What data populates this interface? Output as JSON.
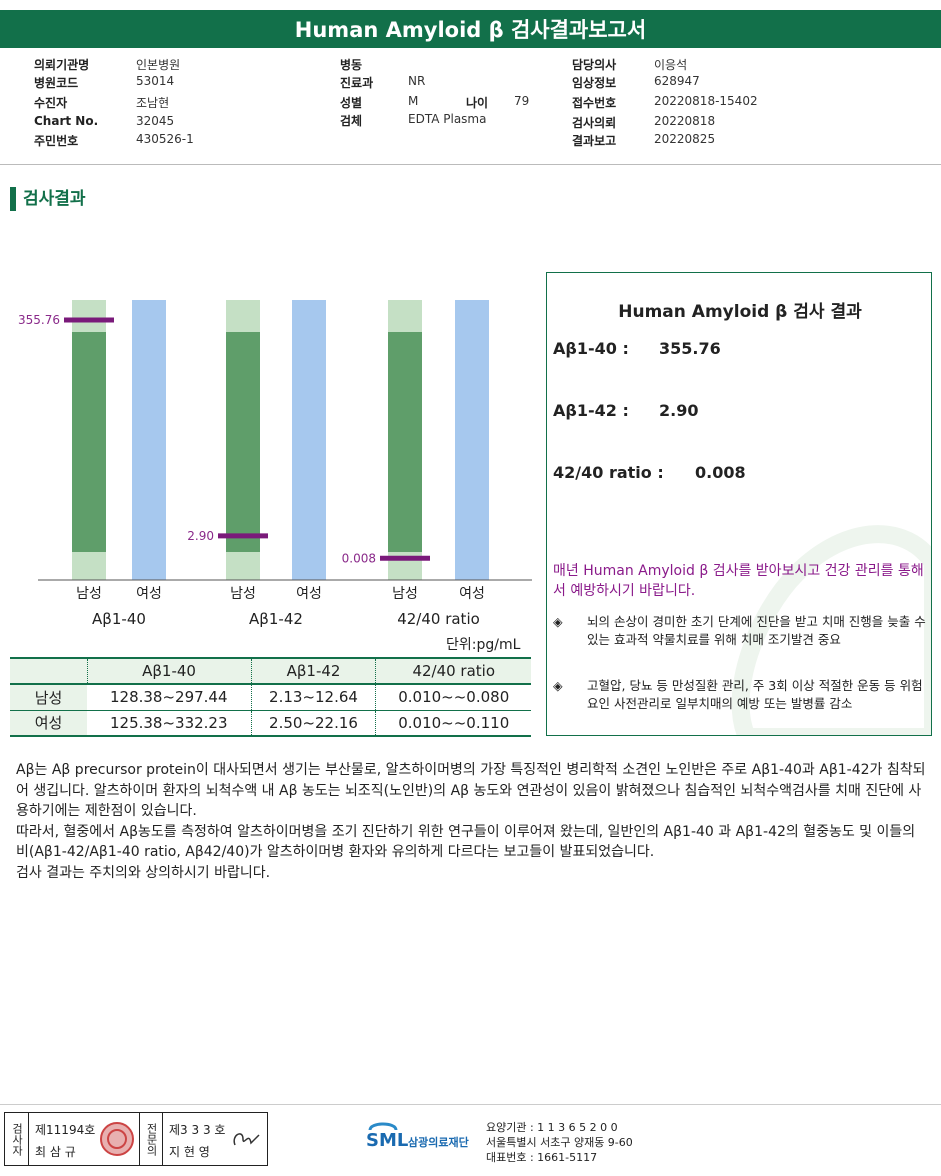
{
  "title": "Human Amyloid β 검사결과보고서",
  "info": {
    "col1": [
      {
        "label": "의뢰기관명",
        "value": "인본병원"
      },
      {
        "label": "병원코드",
        "value": "53014"
      },
      {
        "label": "수진자",
        "value": "조남현"
      },
      {
        "label": "Chart No.",
        "value": "32045"
      },
      {
        "label": "주민번호",
        "value": "430526-1"
      }
    ],
    "col2": [
      {
        "label": "병동",
        "value": ""
      },
      {
        "label": "진료과",
        "value": "NR"
      },
      {
        "label": "성별",
        "value": "M"
      },
      {
        "label": "검체",
        "value": "EDTA Plasma"
      }
    ],
    "age_label": "나이",
    "age_value": "79",
    "col3": [
      {
        "label": "담당의사",
        "value": "이응석"
      },
      {
        "label": "임상정보",
        "value": "628947"
      },
      {
        "label": "접수번호",
        "value": "20220818-15402"
      },
      {
        "label": "검사의뢰",
        "value": "20220818"
      },
      {
        "label": "결과보고",
        "value": "20220825"
      }
    ]
  },
  "section_title": "검사결과",
  "chart_data": {
    "type": "bar",
    "groups": [
      "Aβ1-40",
      "Aβ1-42",
      "42/40 ratio"
    ],
    "sub_categories": [
      "남성",
      "여성"
    ],
    "reference_ranges": {
      "남성": [
        [
          128.38,
          297.44
        ],
        [
          2.13,
          12.64
        ],
        [
          0.01,
          0.08
        ]
      ],
      "여성": [
        [
          125.38,
          332.23
        ],
        [
          2.5,
          22.16
        ],
        [
          0.01,
          0.11
        ]
      ]
    },
    "patient_values": [
      355.76,
      2.9,
      0.008
    ],
    "patient_value_labels": [
      "355.76",
      "2.90",
      "0.008"
    ],
    "unit_label": "단위:pg/mL",
    "colors": {
      "male_range": "#5f9e6a",
      "male_bg": "#c5e0c5",
      "female_bg": "#a6c8ee",
      "marker": "#7a1a7a",
      "label": "#8a2a8a"
    }
  },
  "ref_table": {
    "headers": [
      "",
      "Aβ1-40",
      "Aβ1-42",
      "42/40 ratio"
    ],
    "rows": [
      {
        "label": "남성",
        "cells": [
          "128.38~297.44",
          "2.13~12.64",
          "0.010~~0.080"
        ]
      },
      {
        "label": "여성",
        "cells": [
          "125.38~332.23",
          "2.50~22.16",
          "0.010~~0.110"
        ]
      }
    ]
  },
  "result_box": {
    "title": "Human Amyloid β 검사 결과",
    "rows": [
      {
        "label": "Aβ1-40 :",
        "value": "355.76"
      },
      {
        "label": "Aβ1-42 :",
        "value": "2.90"
      },
      {
        "label": "42/40 ratio :",
        "value": "0.008"
      }
    ],
    "message": "매년 Human Amyloid β 검사를 받아보시고 건강 관리를 통해서 예방하시기 바랍니다.",
    "bullet_mark": "◈",
    "bullets": [
      "뇌의 손상이 경미한 초기 단계에 진단을 받고 치매 진행을 늦출 수 있는 효과적 약물치료를 위해 치매 조기발견 중요",
      "고혈압, 당뇨 등 만성질환 관리, 주 3회 이상 적절한 운동 등 위험요인 사전관리로 일부치매의 예방 또는 발병률 감소"
    ]
  },
  "description": [
    "Aβ는 Aβ precursor protein이 대사되면서 생기는 부산물로, 알츠하이머병의 가장 특징적인 병리학적 소견인 노인반은 주로 Aβ1-40과 Aβ1-42가 침착되어 생깁니다. 알츠하이머 환자의 뇌척수액 내 Aβ 농도는 뇌조직(노인반)의 Aβ 농도와 연관성이 있음이 밝혀졌으나 침습적인 뇌척수액검사를 치매 진단에 사용하기에는 제한점이 있습니다.",
    "따라서, 혈중에서 Aβ농도를 측정하여 알츠하이머병을 조기 진단하기 위한 연구들이 이루어져 왔는데, 일반인의 Aβ1-40 과 Aβ1-42의 혈중농도 및 이들의 비(Aβ1-42/Aβ1-40 ratio, Aβ42/40)가 알츠하이머병 환자와 유의하게 다르다는 보고들이 발표되었습니다.",
    "검사 결과는 주치의와 상의하시기 바랍니다."
  ],
  "footer": {
    "stamp1_col": "검사자",
    "stamp1_no": "제11194호",
    "stamp1_name": "최 삼 규",
    "stamp2_col": "전문의",
    "stamp2_no": "제3 3 3 호",
    "stamp2_name": "지 현 영",
    "logo_text": "SML",
    "logo_sub": "삼광의료재단",
    "agency_no": "요양기관 : 1 1 3 6 5 2 0 0",
    "address": "서울특별시 서초구 양재동 9-60",
    "phone": "대표번호 : 1661-5117"
  }
}
